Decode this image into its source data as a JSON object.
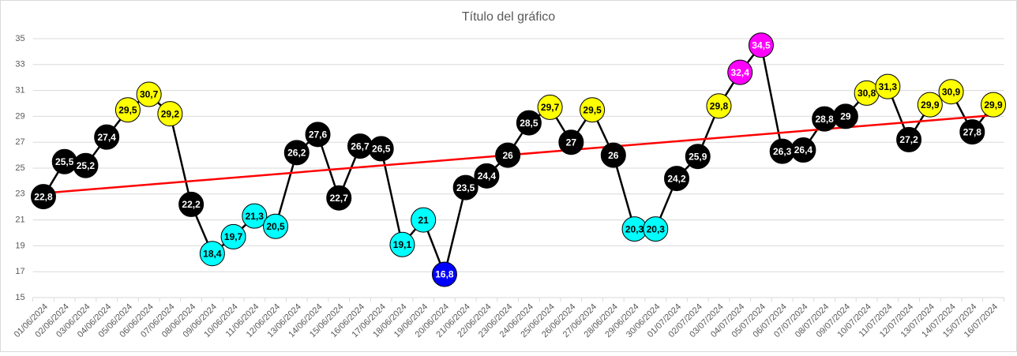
{
  "chart_data": {
    "type": "line",
    "title": "Título del gráfico",
    "categories": [
      "01/06/2024",
      "02/06/2024",
      "03/06/2024",
      "04/06/2024",
      "05/06/2024",
      "06/06/2024",
      "07/06/2024",
      "08/06/2024",
      "09/06/2024",
      "10/06/2024",
      "11/06/2024",
      "12/06/2024",
      "13/06/2024",
      "14/06/2024",
      "15/06/2024",
      "16/06/2024",
      "17/06/2024",
      "18/06/2024",
      "19/06/2024",
      "20/06/2024",
      "21/06/2024",
      "22/06/2024",
      "23/06/2024",
      "24/06/2024",
      "25/06/2024",
      "26/06/2024",
      "27/06/2024",
      "28/06/2024",
      "29/06/2024",
      "30/06/2024",
      "01/07/2024",
      "02/07/2024",
      "03/07/2024",
      "04/07/2024",
      "05/07/2024",
      "06/07/2024",
      "07/07/2024",
      "08/07/2024",
      "09/07/2024",
      "10/07/2024",
      "11/07/2024",
      "12/07/2024",
      "13/07/2024",
      "14/07/2024",
      "15/07/2024",
      "16/07/2024"
    ],
    "values": [
      22.8,
      25.5,
      25.2,
      27.4,
      29.5,
      30.7,
      29.2,
      22.2,
      18.4,
      19.7,
      21.3,
      20.5,
      26.2,
      27.6,
      22.7,
      26.7,
      26.5,
      19.1,
      21,
      16.8,
      23.5,
      24.4,
      26,
      28.5,
      29.7,
      27,
      29.5,
      26,
      20.3,
      20.3,
      24.2,
      25.9,
      29.8,
      32.4,
      34.5,
      26.3,
      26.4,
      28.8,
      29,
      30.8,
      31.3,
      27.2,
      29.9,
      30.9,
      27.8,
      29.9
    ],
    "value_labels": [
      "22,8",
      "25,5",
      "25,2",
      "27,4",
      "29,5",
      "30,7",
      "29,2",
      "22,2",
      "18,4",
      "19,7",
      "21,3",
      "20,5",
      "26,2",
      "27,6",
      "22,7",
      "26,7",
      "26,5",
      "19,1",
      "21",
      "16,8",
      "23,5",
      "24,4",
      "26",
      "28,5",
      "29,7",
      "27",
      "29,5",
      "26",
      "20,3",
      "20,3",
      "24,2",
      "25,9",
      "29,8",
      "32,4",
      "34,5",
      "26,3",
      "26,4",
      "28,8",
      "29",
      "30,8",
      "31,3",
      "27,2",
      "29,9",
      "30,9",
      "27,8",
      "29,9"
    ],
    "color": "#000000",
    "point_colors": [
      "#000000",
      "#000000",
      "#000000",
      "#000000",
      "#ffff00",
      "#ffff00",
      "#ffff00",
      "#000000",
      "#00ffff",
      "#00ffff",
      "#00ffff",
      "#00ffff",
      "#000000",
      "#000000",
      "#000000",
      "#000000",
      "#000000",
      "#00ffff",
      "#00ffff",
      "#0000ff",
      "#000000",
      "#000000",
      "#000000",
      "#000000",
      "#ffff00",
      "#000000",
      "#ffff00",
      "#000000",
      "#00ffff",
      "#00ffff",
      "#000000",
      "#000000",
      "#ffff00",
      "#ff00ff",
      "#ff00ff",
      "#000000",
      "#000000",
      "#000000",
      "#000000",
      "#ffff00",
      "#ffff00",
      "#000000",
      "#ffff00",
      "#ffff00",
      "#000000",
      "#ffff00"
    ],
    "trendline": {
      "type": "linear",
      "color": "#ff0000"
    },
    "ylim": [
      15,
      35
    ],
    "yticks": [
      15,
      17,
      19,
      21,
      23,
      25,
      27,
      29,
      31,
      33,
      35
    ],
    "grid": true
  }
}
